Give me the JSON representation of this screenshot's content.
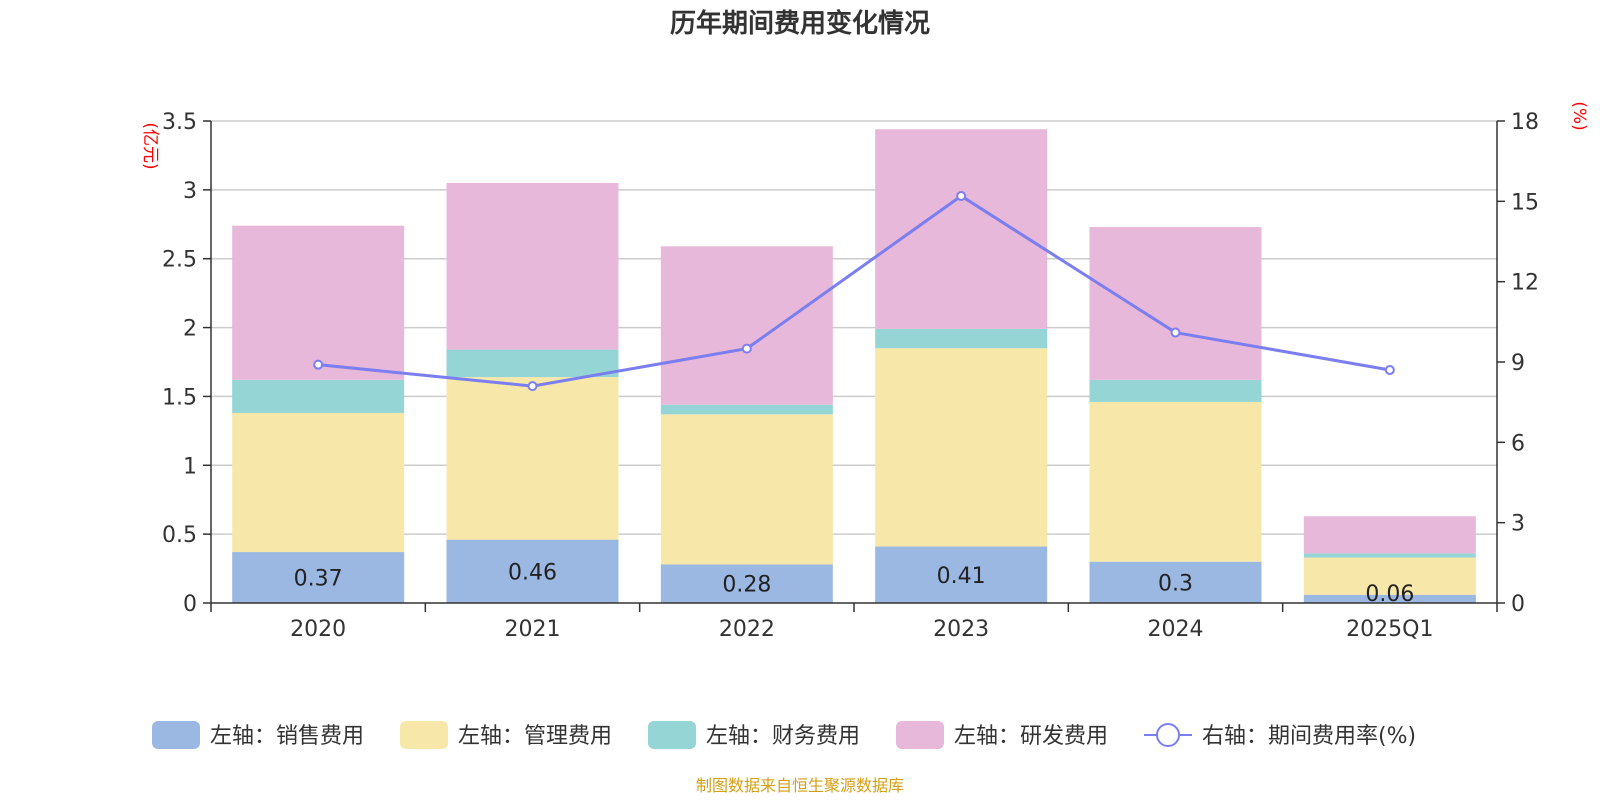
{
  "chart_data": {
    "type": "bar",
    "title": "历年期间费用变化情况",
    "categories": [
      "2020",
      "2021",
      "2022",
      "2023",
      "2024",
      "2025Q1"
    ],
    "y_left": {
      "label": "(亿元)",
      "min": 0,
      "max": 3.5,
      "ticks": [
        "0",
        "0.5",
        "1",
        "1.5",
        "2",
        "2.5",
        "3",
        "3.5"
      ]
    },
    "y_right": {
      "label": "(%)",
      "min": 0,
      "max": 18,
      "ticks": [
        "0",
        "3",
        "6",
        "9",
        "12",
        "15",
        "18"
      ]
    },
    "grid": true,
    "legend_position": "bottom",
    "series": [
      {
        "name": "左轴：销售费用",
        "kind": "bar",
        "stack": true,
        "color": "#9bb8e3",
        "values": [
          0.37,
          0.46,
          0.28,
          0.41,
          0.3,
          0.06
        ],
        "labels": [
          "0.37",
          "0.46",
          "0.28",
          "0.41",
          "0.3",
          "0.06"
        ]
      },
      {
        "name": "左轴：管理费用",
        "kind": "bar",
        "stack": true,
        "color": "#f7e7a8",
        "values": [
          1.01,
          1.18,
          1.09,
          1.44,
          1.16,
          0.27
        ]
      },
      {
        "name": "左轴：财务费用",
        "kind": "bar",
        "stack": true,
        "color": "#96d5d5",
        "values": [
          0.24,
          0.2,
          0.07,
          0.14,
          0.16,
          0.03
        ]
      },
      {
        "name": "左轴：研发费用",
        "kind": "bar",
        "stack": true,
        "color": "#e7b8d9",
        "values": [
          1.12,
          1.21,
          1.15,
          1.45,
          1.11,
          0.27
        ]
      },
      {
        "name": "右轴：期间费用率(%)",
        "kind": "line",
        "axis": "right",
        "color": "#7b7ef0",
        "values": [
          8.9,
          8.1,
          9.5,
          15.2,
          10.1,
          8.7
        ]
      }
    ],
    "source": "制图数据来自恒生聚源数据库"
  }
}
